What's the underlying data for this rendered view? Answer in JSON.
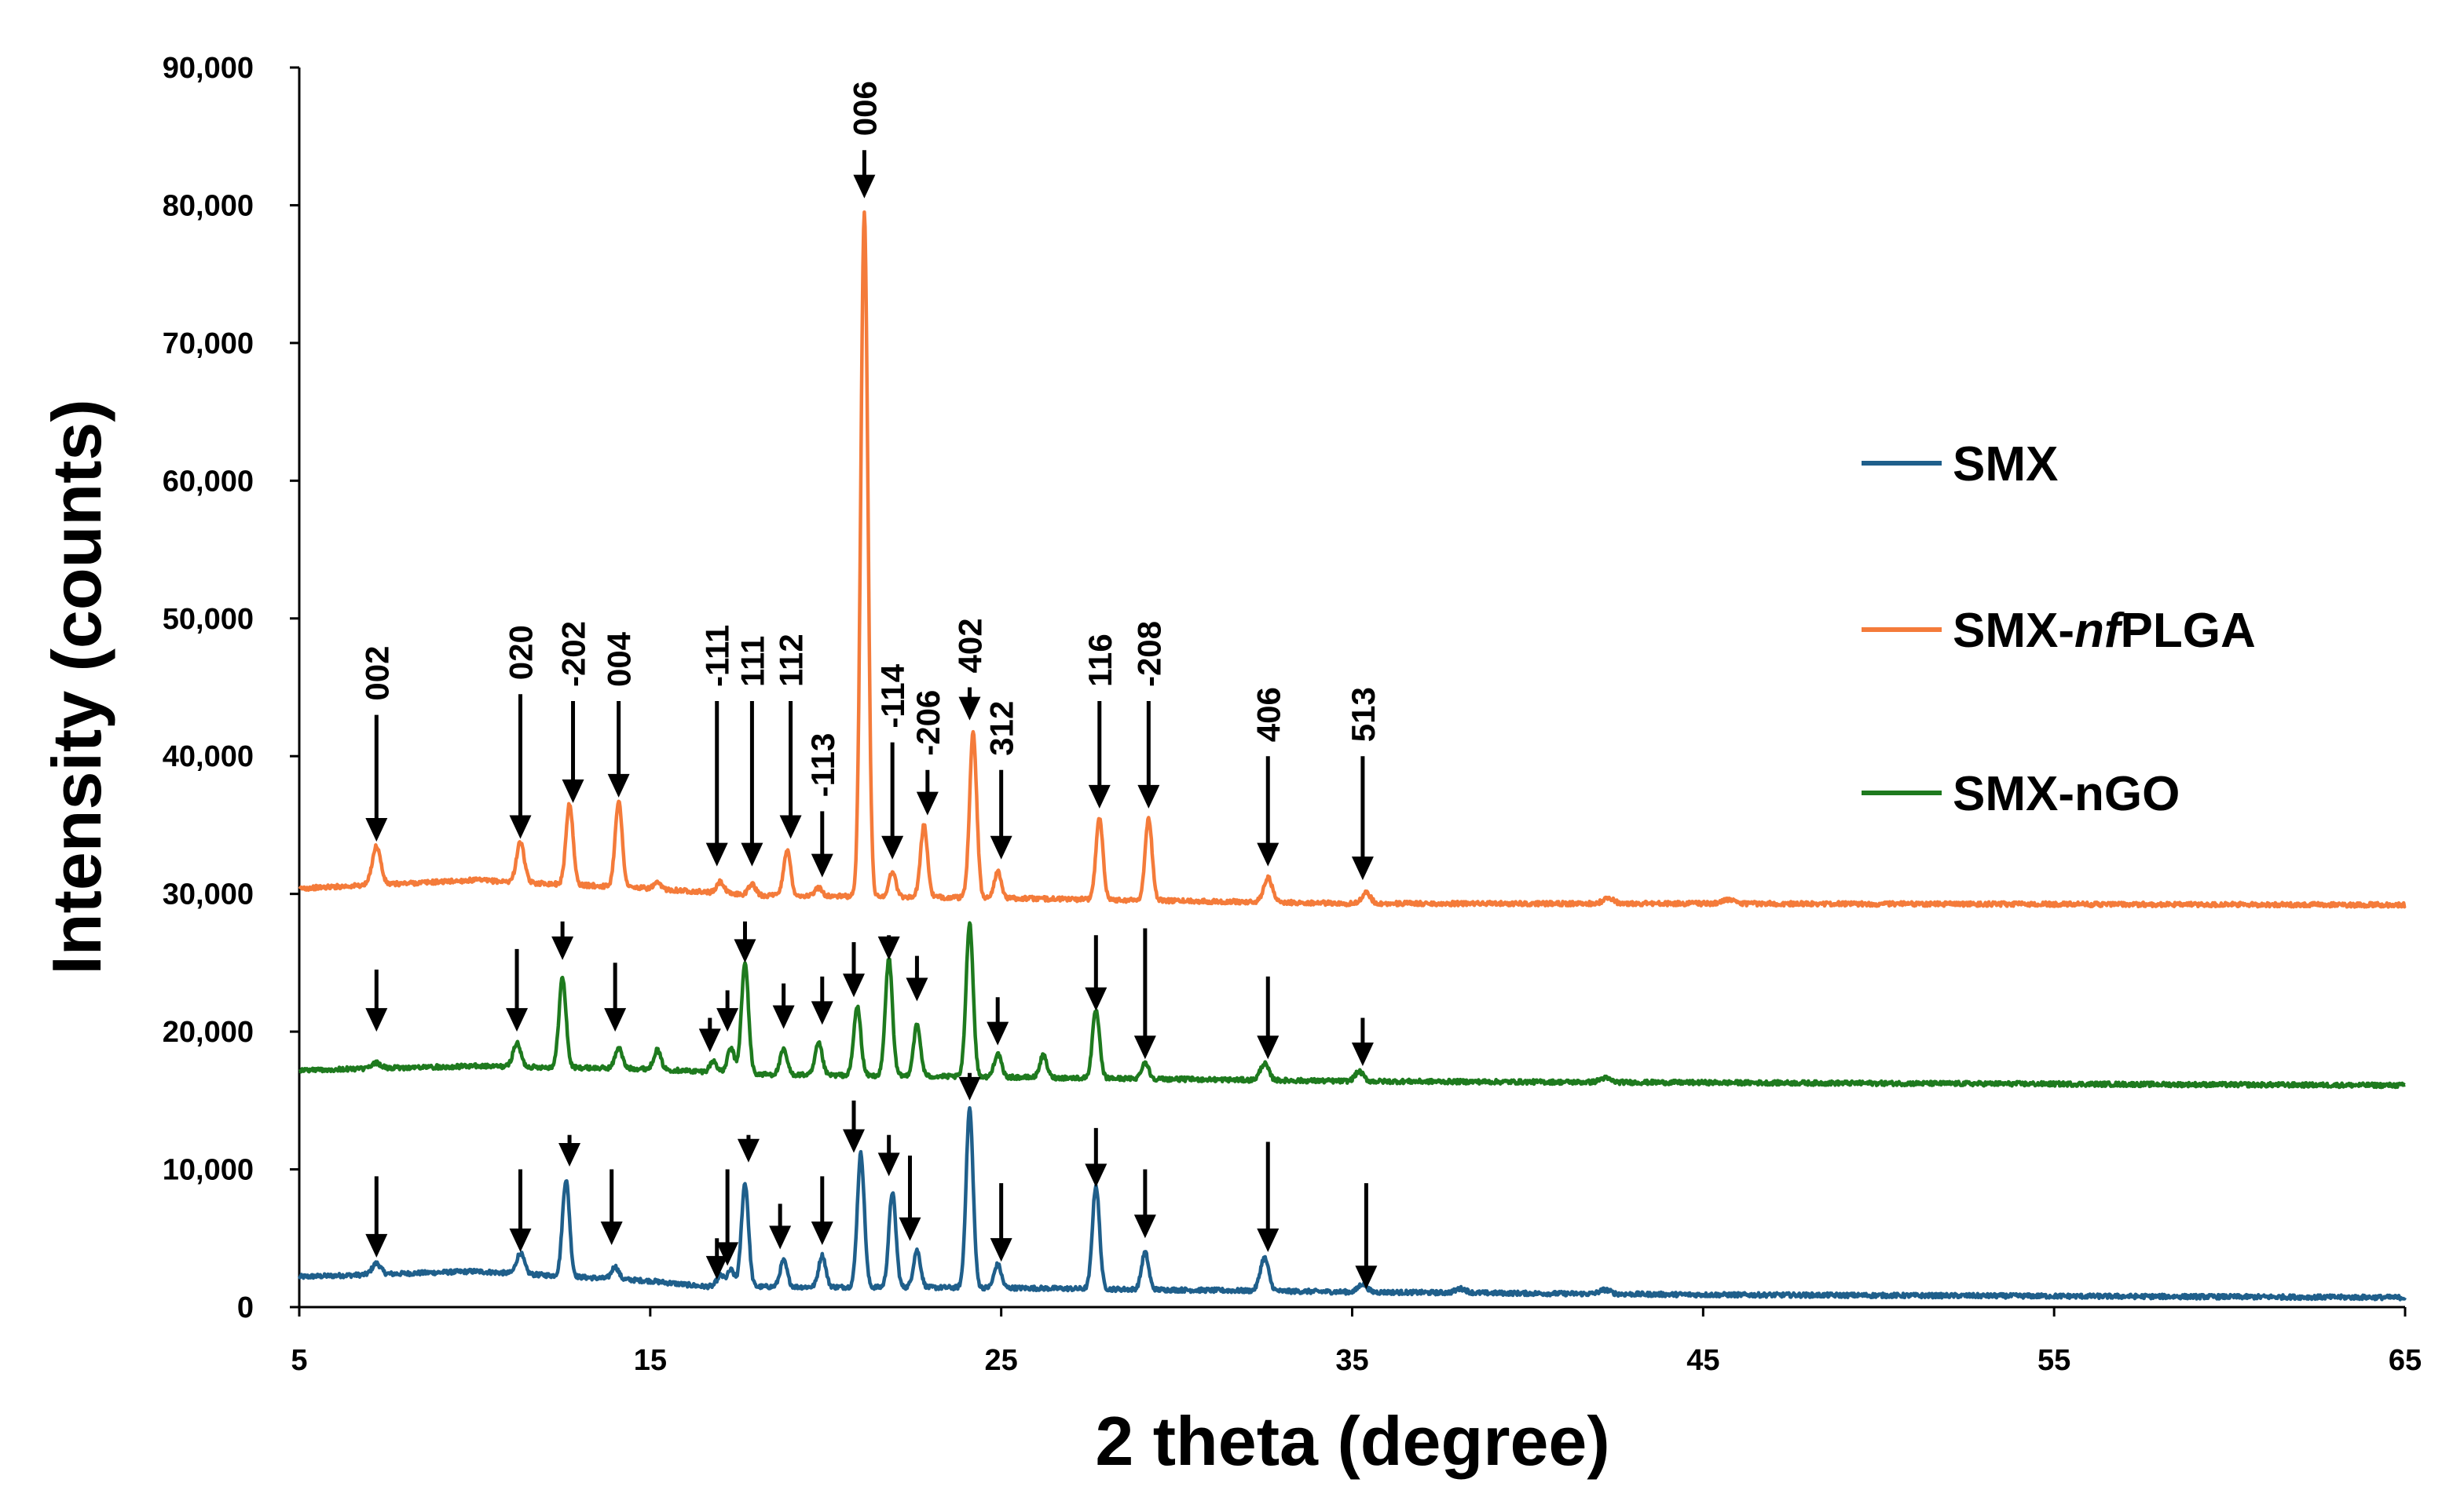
{
  "chart_data": {
    "type": "line",
    "title": "",
    "xlabel": "2 theta (degree)",
    "ylabel": "Intensity (counts)",
    "xlim": [
      5,
      65
    ],
    "ylim": [
      0,
      90000
    ],
    "x_ticks": [
      "5",
      "15",
      "25",
      "35",
      "45",
      "55",
      "65"
    ],
    "x_tick_values": [
      5,
      15,
      25,
      35,
      45,
      55,
      65
    ],
    "y_ticks": [
      "0",
      "10,000",
      "20,000",
      "30,000",
      "40,000",
      "50,000",
      "60,000",
      "70,000",
      "80,000",
      "90,000"
    ],
    "y_tick_values": [
      0,
      10000,
      20000,
      30000,
      40000,
      50000,
      60000,
      70000,
      80000,
      90000
    ],
    "legend": [
      {
        "label": "SMX",
        "color": "#1f5f8b"
      },
      {
        "label_parts": [
          "SMX-",
          "nf",
          "PLGA"
        ],
        "color": "#f47b3a"
      },
      {
        "label": "SMX-nGO",
        "color": "#1e7a1e"
      }
    ],
    "series": [
      {
        "name": "SMX",
        "color": "#1f5f8b",
        "baseline": [
          [
            5,
            2200
          ],
          [
            10,
            2600
          ],
          [
            15,
            1900
          ],
          [
            16.5,
            1500
          ],
          [
            25,
            1400
          ],
          [
            35,
            1100
          ],
          [
            45,
            900
          ],
          [
            65,
            700
          ]
        ],
        "peaks": [
          [
            7.2,
            800,
            0.12
          ],
          [
            11.3,
            1500,
            0.11
          ],
          [
            12.6,
            7000,
            0.1
          ],
          [
            14.0,
            900,
            0.1
          ],
          [
            17.0,
            800,
            0.1
          ],
          [
            17.3,
            1200,
            0.1
          ],
          [
            17.7,
            7500,
            0.1
          ],
          [
            18.8,
            1900,
            0.1
          ],
          [
            19.9,
            2300,
            0.1
          ],
          [
            21.0,
            9700,
            0.1
          ],
          [
            21.9,
            6900,
            0.1
          ],
          [
            22.6,
            2700,
            0.1
          ],
          [
            24.1,
            13000,
            0.1
          ],
          [
            24.9,
            1700,
            0.1
          ],
          [
            27.7,
            7500,
            0.1
          ],
          [
            29.1,
            2700,
            0.1
          ],
          [
            32.5,
            2400,
            0.12
          ],
          [
            35.3,
            600,
            0.12
          ],
          [
            38.1,
            300,
            0.15
          ],
          [
            42.2,
            300,
            0.15
          ]
        ]
      },
      {
        "name": "SMX-nfPLGA",
        "color": "#f47b3a",
        "baseline": [
          [
            5,
            30400
          ],
          [
            10,
            31000
          ],
          [
            15,
            30400
          ],
          [
            18,
            29900
          ],
          [
            25,
            29700
          ],
          [
            35,
            29300
          ],
          [
            45,
            29300
          ],
          [
            65,
            29200
          ]
        ],
        "peaks": [
          [
            7.2,
            2800,
            0.12
          ],
          [
            11.3,
            2900,
            0.11
          ],
          [
            12.7,
            5900,
            0.1
          ],
          [
            14.1,
            6200,
            0.1
          ],
          [
            15.2,
            400,
            0.1
          ],
          [
            17.0,
            800,
            0.1
          ],
          [
            17.9,
            800,
            0.1
          ],
          [
            18.9,
            3300,
            0.1
          ],
          [
            19.8,
            600,
            0.1
          ],
          [
            21.1,
            49600,
            0.1
          ],
          [
            21.9,
            1800,
            0.1
          ],
          [
            22.8,
            5200,
            0.1
          ],
          [
            24.2,
            12000,
            0.1
          ],
          [
            24.9,
            1900,
            0.1
          ],
          [
            27.8,
            5900,
            0.1
          ],
          [
            29.2,
            5900,
            0.1
          ],
          [
            32.6,
            1800,
            0.12
          ],
          [
            35.4,
            800,
            0.12
          ],
          [
            42.3,
            400,
            0.15
          ],
          [
            45.7,
            300,
            0.15
          ]
        ]
      },
      {
        "name": "SMX-nGO",
        "color": "#1e7a1e",
        "baseline": [
          [
            5,
            17200
          ],
          [
            10,
            17500
          ],
          [
            15,
            17300
          ],
          [
            18,
            16900
          ],
          [
            25,
            16700
          ],
          [
            35,
            16400
          ],
          [
            45,
            16300
          ],
          [
            65,
            16100
          ]
        ],
        "peaks": [
          [
            7.2,
            400,
            0.12
          ],
          [
            11.2,
            1700,
            0.11
          ],
          [
            12.5,
            6500,
            0.1
          ],
          [
            14.1,
            1500,
            0.1
          ],
          [
            15.2,
            1400,
            0.1
          ],
          [
            16.8,
            800,
            0.1
          ],
          [
            17.3,
            1800,
            0.1
          ],
          [
            17.7,
            8000,
            0.1
          ],
          [
            18.8,
            1800,
            0.1
          ],
          [
            19.8,
            2300,
            0.1
          ],
          [
            20.9,
            5000,
            0.1
          ],
          [
            21.8,
            8500,
            0.1
          ],
          [
            22.6,
            3700,
            0.1
          ],
          [
            24.1,
            11200,
            0.1
          ],
          [
            24.9,
            1700,
            0.1
          ],
          [
            26.2,
            1600,
            0.1
          ],
          [
            27.7,
            4900,
            0.1
          ],
          [
            29.1,
            1200,
            0.1
          ],
          [
            32.5,
            1200,
            0.12
          ],
          [
            35.2,
            700,
            0.12
          ],
          [
            42.2,
            300,
            0.15
          ]
        ]
      }
    ],
    "peak_labels": [
      {
        "text": "002",
        "x": 7.2,
        "top": 43000,
        "tip": 33800
      },
      {
        "text": "020",
        "x": 11.3,
        "top": 44500,
        "tip": 34000
      },
      {
        "text": "-202",
        "x": 12.8,
        "top": 44000,
        "tip": 36600
      },
      {
        "text": "004",
        "x": 14.1,
        "top": 44000,
        "tip": 37000
      },
      {
        "text": "-111",
        "x": 16.9,
        "top": 44000,
        "tip": 32000
      },
      {
        "text": "111",
        "x": 17.9,
        "top": 44000,
        "tip": 32000
      },
      {
        "text": "112",
        "x": 19.0,
        "top": 44000,
        "tip": 34000
      },
      {
        "text": "-113",
        "x": 19.9,
        "top": 36000,
        "tip": 31200
      },
      {
        "text": "006",
        "x": 21.1,
        "top": 84000,
        "tip": 80500
      },
      {
        "text": "-114",
        "x": 21.9,
        "top": 41000,
        "tip": 32500
      },
      {
        "text": "-206",
        "x": 22.9,
        "top": 39000,
        "tip": 35700
      },
      {
        "text": "402",
        "x": 24.1,
        "top": 45000,
        "tip": 42600
      },
      {
        "text": "312",
        "x": 25.0,
        "top": 39000,
        "tip": 32500
      },
      {
        "text": "116",
        "x": 27.8,
        "top": 44000,
        "tip": 36200
      },
      {
        "text": "-208",
        "x": 29.2,
        "top": 44000,
        "tip": 36200
      },
      {
        "text": "406",
        "x": 32.6,
        "top": 40000,
        "tip": 32000
      },
      {
        "text": "513",
        "x": 35.3,
        "top": 40000,
        "tip": 31000
      }
    ],
    "unlabeled_arrows": [
      {
        "x": 7.2,
        "top": 24500,
        "tip": 20000
      },
      {
        "x": 11.2,
        "top": 26000,
        "tip": 20000
      },
      {
        "x": 12.5,
        "top": 28000,
        "tip": 25200
      },
      {
        "x": 14.0,
        "top": 25000,
        "tip": 20000
      },
      {
        "x": 16.7,
        "top": 21000,
        "tip": 18500
      },
      {
        "x": 17.2,
        "top": 23000,
        "tip": 20000
      },
      {
        "x": 17.7,
        "top": 28000,
        "tip": 25000
      },
      {
        "x": 18.8,
        "top": 23500,
        "tip": 20200
      },
      {
        "x": 19.9,
        "top": 24000,
        "tip": 20500
      },
      {
        "x": 20.8,
        "top": 26500,
        "tip": 22500
      },
      {
        "x": 21.8,
        "top": 27000,
        "tip": 25200
      },
      {
        "x": 22.6,
        "top": 25500,
        "tip": 22200
      },
      {
        "x": 24.9,
        "top": 22500,
        "tip": 19000
      },
      {
        "x": 27.7,
        "top": 27000,
        "tip": 21500
      },
      {
        "x": 29.1,
        "top": 27500,
        "tip": 18000
      },
      {
        "x": 32.6,
        "top": 24000,
        "tip": 18000
      },
      {
        "x": 35.3,
        "top": 21000,
        "tip": 17500
      },
      {
        "x": 7.2,
        "top": 9500,
        "tip": 3600
      },
      {
        "x": 11.3,
        "top": 10000,
        "tip": 4000
      },
      {
        "x": 12.7,
        "top": 12500,
        "tip": 10200
      },
      {
        "x": 13.9,
        "top": 10000,
        "tip": 4500
      },
      {
        "x": 16.9,
        "top": 5000,
        "tip": 2000
      },
      {
        "x": 17.2,
        "top": 10000,
        "tip": 3000
      },
      {
        "x": 17.8,
        "top": 12500,
        "tip": 10500
      },
      {
        "x": 18.7,
        "top": 7500,
        "tip": 4200
      },
      {
        "x": 19.9,
        "top": 9500,
        "tip": 4500
      },
      {
        "x": 20.8,
        "top": 15000,
        "tip": 11200
      },
      {
        "x": 21.8,
        "top": 12500,
        "tip": 9500
      },
      {
        "x": 22.4,
        "top": 11000,
        "tip": 4800
      },
      {
        "x": 24.1,
        "top": 17000,
        "tip": 15000
      },
      {
        "x": 25.0,
        "top": 9000,
        "tip": 3300
      },
      {
        "x": 27.7,
        "top": 13000,
        "tip": 8700
      },
      {
        "x": 29.1,
        "top": 10000,
        "tip": 5000
      },
      {
        "x": 32.6,
        "top": 12000,
        "tip": 4000
      },
      {
        "x": 35.4,
        "top": 9000,
        "tip": 1300
      }
    ]
  }
}
